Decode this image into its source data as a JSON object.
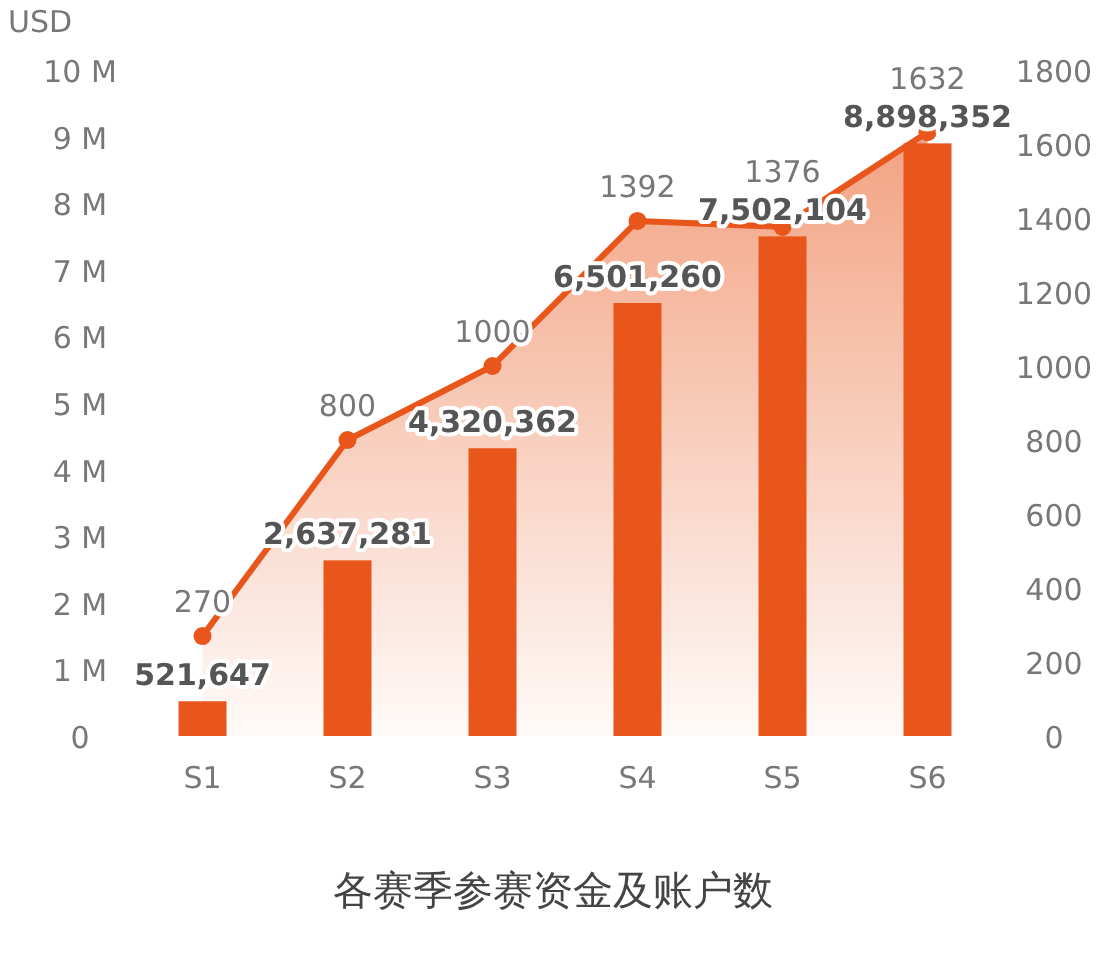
{
  "chart_data": {
    "type": "bar",
    "title": "各赛季参赛资金及账户数",
    "ylabel": "USD",
    "categories": [
      "S1",
      "S2",
      "S3",
      "S4",
      "S5",
      "S6"
    ],
    "series": [
      {
        "color": "#e8561b",
        "values": [
          521647,
          2637281,
          4320362,
          6501260,
          7502104,
          8898352
        ],
        "value_labels": [
          "521,647",
          "2,637,281",
          "4,320,362",
          "6,501,260",
          "7,502,104",
          "8,898,352"
        ]
      },
      {
        "type": "area",
        "axis": "y2",
        "color": "#e8561b",
        "values": [
          270,
          800,
          1000,
          1392,
          1376,
          1632
        ],
        "value_labels": [
          "270",
          "800",
          "1000",
          "1392",
          "1376",
          "1632"
        ]
      }
    ],
    "ylim": [
      0,
      10000000
    ],
    "yticks": [
      0,
      {
        "value": 1000000,
        "label": "1 M"
      },
      {
        "value": 2000000,
        "label": "2 M"
      },
      {
        "value": 3000000,
        "label": "3 M"
      },
      {
        "value": 4000000,
        "label": "4 M"
      },
      {
        "value": 5000000,
        "label": "5 M"
      },
      {
        "value": 6000000,
        "label": "6 M"
      },
      {
        "value": 7000000,
        "label": "7 M"
      },
      {
        "value": 8000000,
        "label": "8 M"
      },
      {
        "value": 9000000,
        "label": "9 M"
      },
      {
        "value": 10000000,
        "label": "10 M"
      }
    ],
    "y2lim": [
      0,
      1800
    ],
    "y2ticks": [
      0,
      200,
      400,
      600,
      800,
      1000,
      1200,
      1400,
      1600,
      1800
    ],
    "marker": "circle",
    "grid": false
  }
}
